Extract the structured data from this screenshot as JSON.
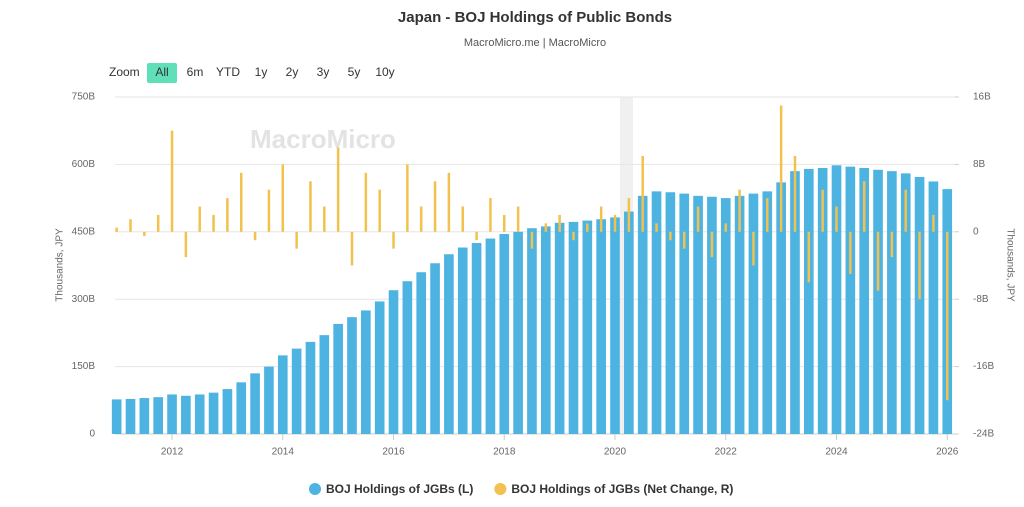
{
  "chart_data": {
    "type": "bar",
    "title": "Japan - BOJ Holdings of Public Bonds",
    "subtitle": "MacroMicro.me | MacroMicro",
    "watermark": "MacroMicro",
    "range_selector": {
      "label": "Zoom",
      "buttons": [
        "All",
        "6m",
        "YTD",
        "1y",
        "2y",
        "3y",
        "5y",
        "10y"
      ],
      "active": 0
    },
    "y_label": "Thousands, JPY",
    "y2_label": "Thousands, JPY",
    "x": [
      2011,
      2011.25,
      2011.5,
      2011.75,
      2012,
      2012.25,
      2012.5,
      2012.75,
      2013,
      2013.25,
      2013.5,
      2013.75,
      2014,
      2014.25,
      2014.5,
      2014.75,
      2015,
      2015.25,
      2015.5,
      2015.75,
      2016,
      2016.25,
      2016.5,
      2016.75,
      2017,
      2017.25,
      2017.5,
      2017.75,
      2018,
      2018.25,
      2018.5,
      2018.75,
      2019,
      2019.25,
      2019.5,
      2019.75,
      2020,
      2020.25,
      2020.5,
      2020.75,
      2021,
      2021.25,
      2021.5,
      2021.75,
      2022,
      2022.25,
      2022.5,
      2022.75,
      2023,
      2023.25,
      2023.5,
      2023.75,
      2024,
      2024.25,
      2024.5,
      2024.75,
      2025,
      2025.25,
      2025.5,
      2025.75,
      2026
    ],
    "series": [
      {
        "name": "BOJ Holdings of JGBs (L)",
        "color": "#4db3e0",
        "axis": "y",
        "values": [
          77,
          78,
          80,
          82,
          88,
          85,
          88,
          92,
          100,
          115,
          135,
          150,
          175,
          190,
          205,
          220,
          245,
          260,
          275,
          295,
          320,
          340,
          360,
          380,
          400,
          415,
          425,
          435,
          445,
          450,
          458,
          462,
          470,
          472,
          475,
          478,
          482,
          495,
          530,
          540,
          538,
          535,
          530,
          528,
          525,
          530,
          535,
          540,
          560,
          585,
          590,
          592,
          598,
          595,
          592,
          588,
          585,
          580,
          572,
          562,
          545
        ]
      },
      {
        "name": "BOJ Holdings of JGBs (Net Change, R)",
        "color": "#f2c14e",
        "axis": "y2",
        "values": [
          0.5,
          1.5,
          -0.5,
          2,
          12,
          -3,
          3,
          2,
          4,
          7,
          -1,
          5,
          8,
          -2,
          6,
          3,
          10,
          -4,
          7,
          5,
          -2,
          8,
          3,
          6,
          7,
          3,
          -1,
          4,
          2,
          3,
          -2,
          1,
          2,
          -1,
          1,
          3,
          2,
          4,
          9,
          1,
          -1,
          -2,
          3,
          -3,
          1,
          5,
          -4,
          4,
          15,
          9,
          -6,
          5,
          3,
          -5,
          6,
          -7,
          -3,
          5,
          -8,
          2,
          -20
        ]
      }
    ],
    "xlim": [
      2010.97,
      2026.14
    ],
    "xticks": [
      2012,
      2014,
      2016,
      2018,
      2020,
      2022,
      2024,
      2026
    ],
    "ylim": [
      0,
      750
    ],
    "yticks": [
      0,
      {
        "value": 150,
        "label": "150B"
      },
      {
        "value": 300,
        "label": "300B"
      },
      {
        "value": 450,
        "label": "450B"
      },
      {
        "value": 600,
        "label": "600B"
      },
      {
        "value": 750,
        "label": "750B"
      }
    ],
    "y2lim": [
      -24,
      16
    ],
    "y2ticks": [
      {
        "value": -24,
        "label": "-24B"
      },
      {
        "value": -16,
        "label": "-16B"
      },
      {
        "value": -8,
        "label": "-8B"
      },
      0,
      {
        "value": 8,
        "label": "8B"
      },
      {
        "value": 16,
        "label": "16B"
      }
    ],
    "grid": true,
    "legend": "bottom"
  }
}
